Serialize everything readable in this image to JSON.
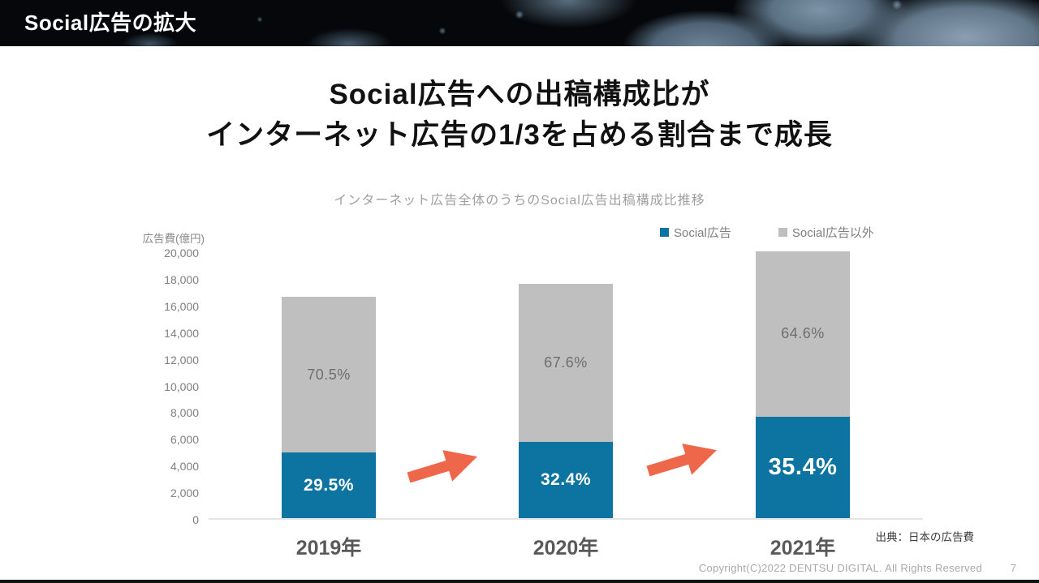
{
  "header": {
    "title": "Social広告の拡大"
  },
  "title": {
    "line1": "Social広告への出稿構成比が",
    "line2": "インターネット広告の1/3を占める割合まで成長"
  },
  "chart": {
    "subtitle": "インターネット広告全体のうちのSocial広告出稿構成比推移",
    "y_axis_label": "広告費(億円)",
    "source": "出典：日本の広告費"
  },
  "chart_data": {
    "type": "bar",
    "stacked": true,
    "title": "インターネット広告全体のうちのSocial広告出稿構成比推移",
    "categories": [
      "2019年",
      "2020年",
      "2021年"
    ],
    "series": [
      {
        "name": "Social広告",
        "share_pct": [
          29.5,
          32.4,
          35.4
        ],
        "color": "#0d73a1"
      },
      {
        "name": "Social広告以外",
        "share_pct": [
          70.5,
          67.6,
          64.6
        ],
        "color": "#bfbfbf"
      }
    ],
    "totals_estimated": [
      16600,
      17550,
      21550
    ],
    "social_amount_estimated": [
      4900,
      5690,
      7630
    ],
    "segment_labels": [
      [
        "29.5%",
        "70.5%"
      ],
      [
        "32.4%",
        "67.6%"
      ],
      [
        "35.4%",
        "64.6%"
      ]
    ],
    "ylabel": "広告費(億円)",
    "ylim": [
      0,
      20000
    ],
    "y_tick_step": 2000,
    "grid": false,
    "legend_position": "top-right",
    "notes": "2021 bar exceeds the y-axis max and is clipped at 20,000; coral arrows between bars indicate growth"
  },
  "footer": {
    "copyright": "Copyright(C)2022 DENTSU DIGITAL. All Rights Reserved",
    "page": "7"
  },
  "colors": {
    "social_blue": "#0d73a1",
    "other_gray": "#bfbfbf",
    "arrow": "#ef674a",
    "header_bg": "#05070a"
  }
}
